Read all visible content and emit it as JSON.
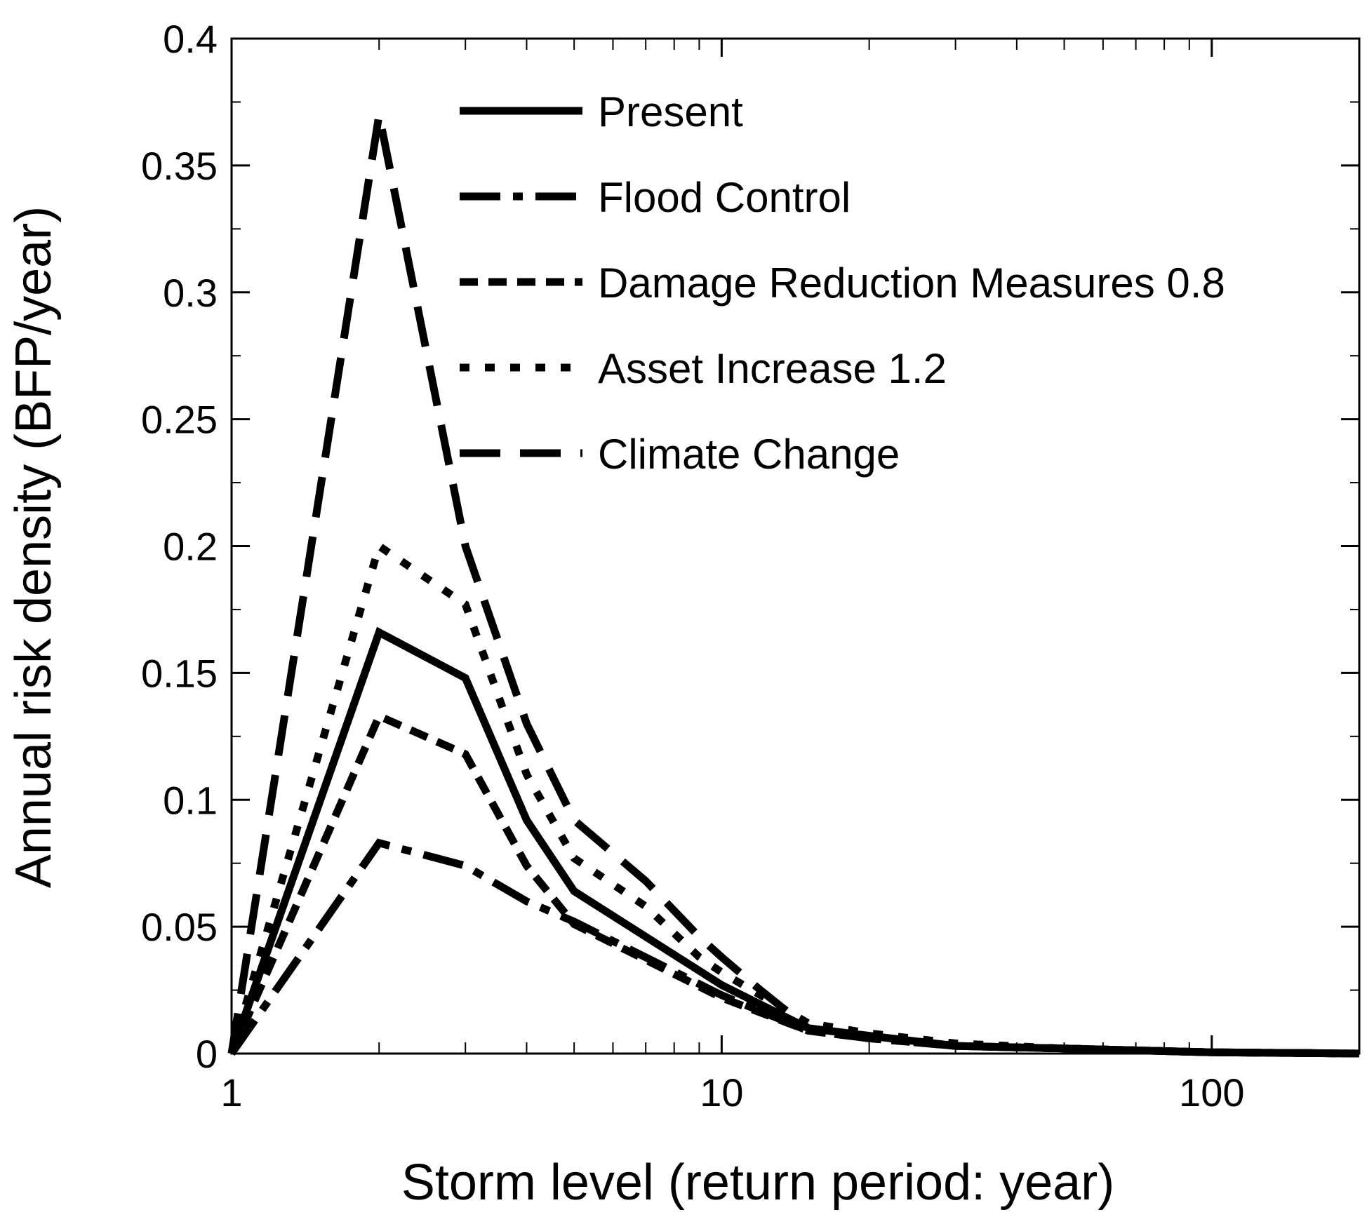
{
  "chart_data": {
    "type": "line",
    "title": "",
    "xlabel": "Storm level (return period: year)",
    "ylabel": "Annual risk density (BFP/year)",
    "xscale": "log",
    "xlim": [
      1,
      200
    ],
    "ylim": [
      0,
      0.4
    ],
    "xticks": [
      1,
      10,
      100
    ],
    "yticks": [
      0,
      0.05,
      0.1,
      0.15,
      0.2,
      0.25,
      0.3,
      0.35,
      0.4
    ],
    "ytick_labels": [
      "0",
      "0.05",
      "0.1",
      "0.15",
      "0.2",
      "0.25",
      "0.3",
      "0.35",
      "0.4"
    ],
    "legend_position": "top-center",
    "series": [
      {
        "name": "Present",
        "style": "solid",
        "x": [
          1,
          2,
          3,
          4,
          5,
          10,
          15,
          20,
          30,
          50,
          100,
          200
        ],
        "y": [
          0,
          0.166,
          0.148,
          0.092,
          0.064,
          0.027,
          0.01,
          0.007,
          0.003,
          0.002,
          0.0005,
          0
        ]
      },
      {
        "name": "Flood Control",
        "style": "dashdot",
        "x": [
          1,
          2,
          3,
          4,
          5,
          10,
          15,
          20,
          30,
          50,
          100,
          200
        ],
        "y": [
          0,
          0.083,
          0.074,
          0.06,
          0.052,
          0.023,
          0.009,
          0.006,
          0.003,
          0.002,
          0.0005,
          0
        ]
      },
      {
        "name": "Damage Reduction Measures 0.8",
        "style": "dashed",
        "x": [
          1,
          2,
          3,
          4,
          5,
          10,
          15,
          20,
          30,
          50,
          100,
          200
        ],
        "y": [
          0,
          0.133,
          0.118,
          0.074,
          0.051,
          0.022,
          0.009,
          0.006,
          0.003,
          0.002,
          0.0005,
          0
        ]
      },
      {
        "name": "Asset Increase 1.2",
        "style": "dotted",
        "x": [
          1,
          2,
          3,
          4,
          5,
          7,
          9,
          10,
          15,
          20,
          30,
          50,
          100,
          200
        ],
        "y": [
          0,
          0.2,
          0.177,
          0.11,
          0.077,
          0.058,
          0.038,
          0.032,
          0.012,
          0.008,
          0.004,
          0.002,
          0.0005,
          0
        ]
      },
      {
        "name": "Climate Change",
        "style": "longdash",
        "x": [
          1,
          2,
          3,
          4,
          5,
          7,
          9,
          10,
          12,
          15,
          20,
          30,
          50,
          100,
          200
        ],
        "y": [
          0,
          0.37,
          0.2,
          0.13,
          0.092,
          0.068,
          0.046,
          0.038,
          0.025,
          0.01,
          0.007,
          0.003,
          0.002,
          0.0005,
          0
        ]
      }
    ]
  }
}
